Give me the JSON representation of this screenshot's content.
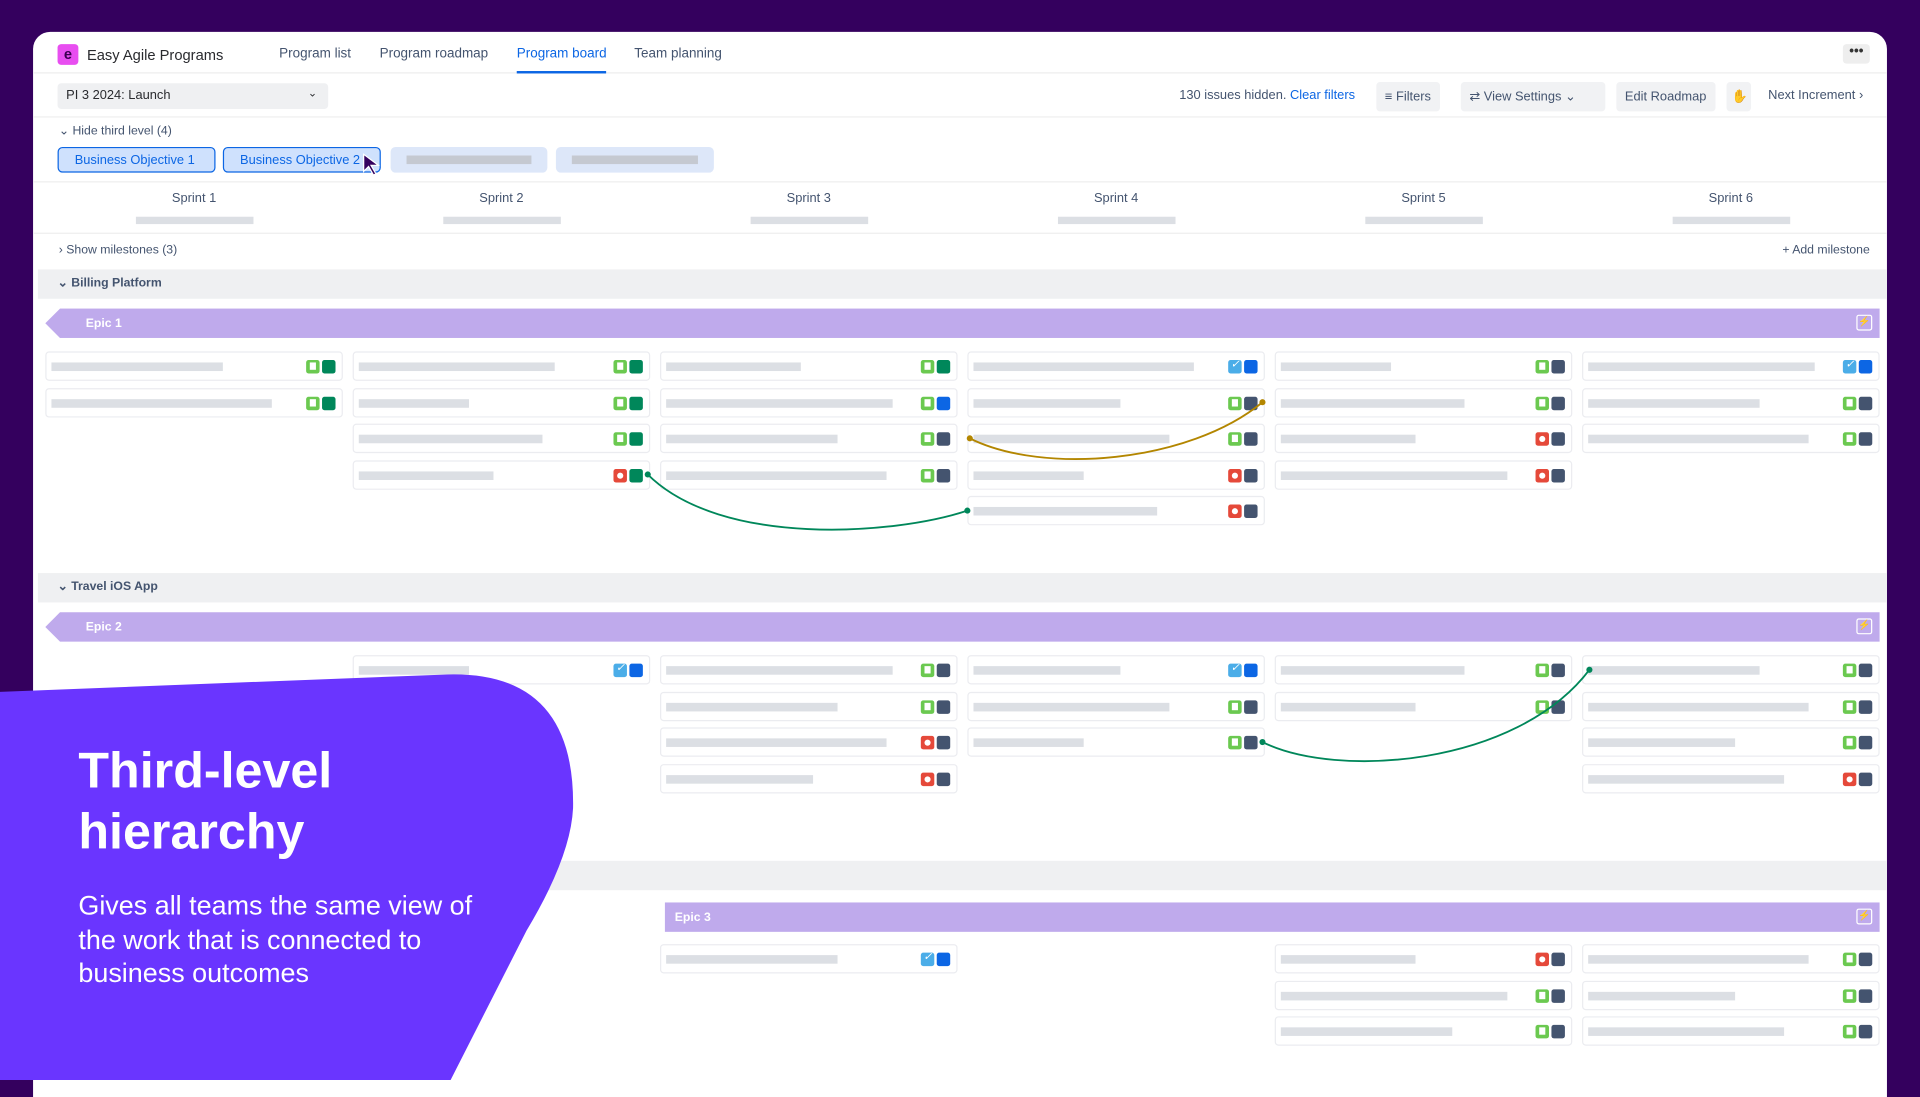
{
  "app": {
    "name": "Easy Agile Programs",
    "logo_letter": "e",
    "brand_color": "#e84ef0"
  },
  "nav": {
    "tabs": [
      {
        "label": "Program list",
        "active": false
      },
      {
        "label": "Program roadmap",
        "active": false
      },
      {
        "label": "Program board",
        "active": true
      },
      {
        "label": "Team planning",
        "active": false
      }
    ],
    "more_icon": "ellipsis-icon"
  },
  "toolbar": {
    "increment": "PI 3 2024: Launch",
    "hidden_text": "130 issues hidden.",
    "clear_filters": "Clear filters",
    "filters": "Filters",
    "view_settings": "View Settings",
    "edit_roadmap": "Edit Roadmap",
    "next_increment": "Next Increment"
  },
  "hierarchy": {
    "toggle": "Hide third level (4)",
    "chips": [
      "Business Objective 1",
      "Business Objective 2",
      "",
      ""
    ]
  },
  "sprints": [
    "Sprint 1",
    "Sprint 2",
    "Sprint 3",
    "Sprint 4",
    "Sprint 5",
    "Sprint 6"
  ],
  "milestones": {
    "toggle": "Show milestones (3)",
    "add": "Add milestone"
  },
  "status_colors": {
    "done": "#00875a",
    "progress": "#0c66e4",
    "todo": "#44546f"
  },
  "lanes": [
    {
      "name": "Billing Platform",
      "epics": [
        {
          "name": "Epic 1",
          "start_sprint": 0,
          "cards": [
            [
              "story:done",
              "story:done"
            ],
            [
              "story:done",
              "story:done",
              "story:done",
              "bug:done"
            ],
            [
              "story:done",
              "story:progress",
              "story:todo",
              "story:todo"
            ],
            [
              "task:progress",
              "story:todo",
              "story:todo",
              "bug:todo",
              "bug:todo"
            ],
            [
              "story:todo",
              "story:todo",
              "bug:todo",
              "bug:todo"
            ],
            [
              "task:progress",
              "story:todo",
              "story:todo"
            ]
          ]
        }
      ]
    },
    {
      "name": "Travel iOS App",
      "epics": [
        {
          "name": "Epic 2",
          "start_sprint": 0,
          "cards": [
            [],
            [
              "task:progress"
            ],
            [
              "story:todo",
              "story:todo",
              "bug:todo",
              "bug:todo"
            ],
            [
              "task:progress",
              "story:todo",
              "story:todo"
            ],
            [
              "story:todo",
              "story:todo"
            ],
            [
              "story:todo",
              "story:todo",
              "story:todo",
              "bug:todo"
            ]
          ]
        }
      ]
    },
    {
      "name": "",
      "epics": [
        {
          "name": "Epic 3",
          "start_sprint": 2,
          "cards": [
            [],
            [],
            [
              "task:progress"
            ],
            [],
            [
              "bug:todo",
              "story:todo",
              "story:todo"
            ],
            [
              "story:todo",
              "story:todo",
              "story:todo"
            ]
          ]
        }
      ]
    }
  ],
  "dependencies": [
    {
      "lane": 0,
      "from": [
        1,
        3
      ],
      "to": [
        3,
        4
      ],
      "color": "#00875a"
    },
    {
      "lane": 0,
      "from": [
        3,
        2
      ],
      "to": [
        3,
        1
      ],
      "color": "#b38600"
    },
    {
      "lane": 1,
      "from": [
        3,
        2
      ],
      "to": [
        5,
        0
      ],
      "color": "#00875a"
    }
  ],
  "promo": {
    "title": "Third-level hierarchy",
    "text": "Gives all teams the same view of the work that is connected to business outcomes",
    "color": "#6a35ff"
  }
}
